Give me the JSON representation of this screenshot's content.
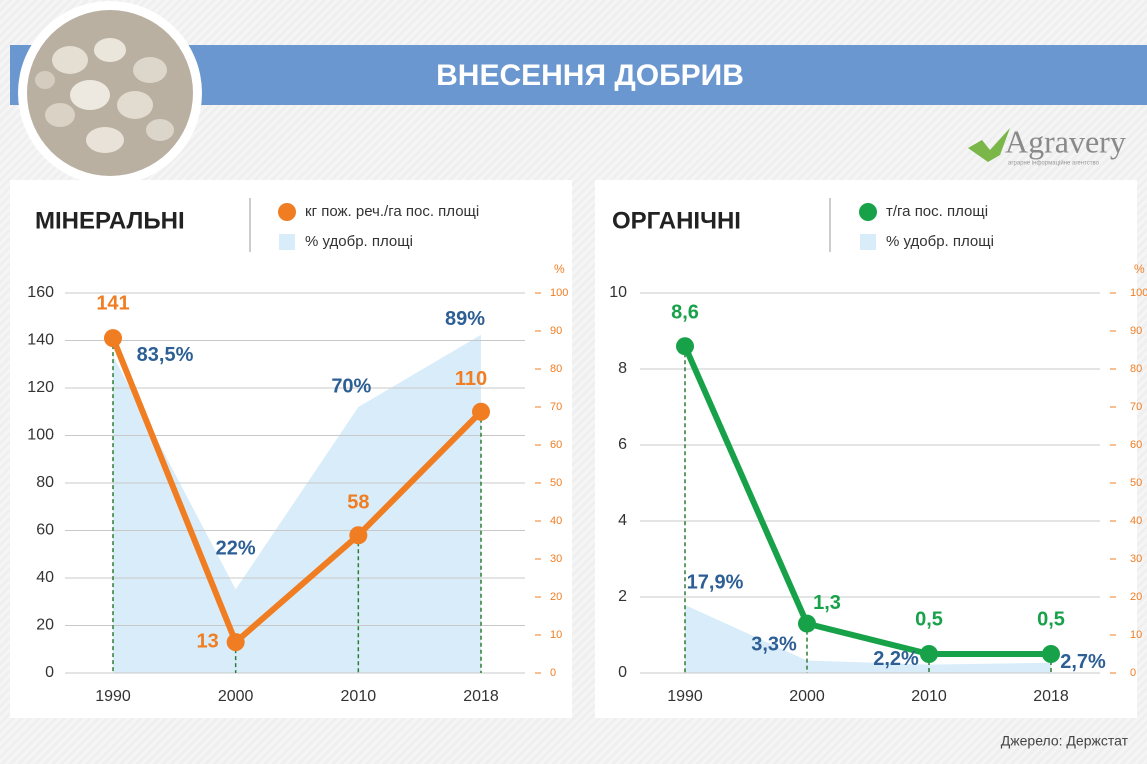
{
  "header": {
    "title": "ВНЕСЕННЯ ДОБРИВ",
    "logo": "Agravery",
    "logo_tagline": "аграрне інформаційне агентство"
  },
  "source": "Джерело: Держстат",
  "chart_data": [
    {
      "type": "line",
      "title": "МІНЕРАЛЬНІ",
      "categories": [
        "1990",
        "2000",
        "2010",
        "2018"
      ],
      "series": [
        {
          "name": "% удобр. площі",
          "type": "area",
          "axis": "y2",
          "color": "#d8edf9",
          "values": [
            83.5,
            22,
            70,
            89
          ],
          "value_labels": [
            "83,5%",
            "22%",
            "70%",
            "89%"
          ]
        },
        {
          "name": "кг пож. реч./га пос. площі",
          "type": "line",
          "color": "#f07d22",
          "values": [
            141,
            13,
            58,
            110
          ]
        }
      ],
      "ylim": [
        0,
        160
      ],
      "yticks": [
        0,
        20,
        40,
        60,
        80,
        100,
        120,
        140,
        160
      ],
      "y2lim": [
        0,
        100
      ],
      "y2ticks": [
        0,
        10,
        20,
        30,
        40,
        50,
        60,
        70,
        80,
        90,
        100
      ],
      "y2label": "%",
      "grid": true
    },
    {
      "type": "line",
      "title": "ОРГАНІЧНІ",
      "categories": [
        "1990",
        "2000",
        "2010",
        "2018"
      ],
      "series": [
        {
          "name": "% удобр. площі",
          "type": "area",
          "axis": "y2",
          "color": "#d8edf9",
          "values": [
            17.9,
            3.3,
            2.2,
            2.7
          ],
          "value_labels": [
            "17,9%",
            "3,3%",
            "2,2%",
            "2,7%"
          ]
        },
        {
          "name": "т/га пос. площі",
          "type": "line",
          "color": "#17a24a",
          "values": [
            8.6,
            1.3,
            0.5,
            0.5
          ],
          "value_labels": [
            "8,6",
            "1,3",
            "0,5",
            "0,5"
          ]
        }
      ],
      "ylim": [
        0,
        10
      ],
      "yticks": [
        0,
        2,
        4,
        6,
        8,
        10
      ],
      "y2lim": [
        0,
        100
      ],
      "y2ticks": [
        0,
        10,
        20,
        30,
        40,
        50,
        60,
        70,
        80,
        90,
        100
      ],
      "y2label": "%",
      "grid": true
    }
  ]
}
